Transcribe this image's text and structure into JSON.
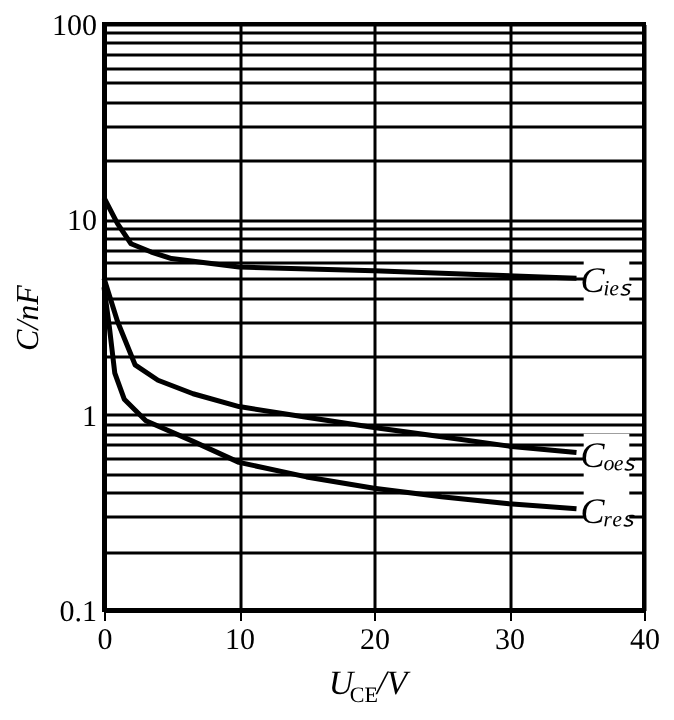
{
  "chart_data": {
    "type": "line",
    "xlabel": "U$_{CE}$/V",
    "ylabel": "C/nF",
    "log": "y",
    "grid": true,
    "legend": false,
    "marker": "none",
    "line_style": "solid",
    "xlim": [
      0,
      40
    ],
    "xticks": [
      0,
      10,
      20,
      30,
      40
    ],
    "ylim": [
      0.1,
      100
    ],
    "yticks": [
      0.1,
      {
        "value": 0.2,
        "label": null
      },
      {
        "value": 0.3,
        "label": null
      },
      {
        "value": 0.4,
        "label": null
      },
      {
        "value": 0.5,
        "label": null
      },
      {
        "value": 0.6,
        "label": null
      },
      {
        "value": 0.7,
        "label": null
      },
      {
        "value": 0.8,
        "label": null
      },
      {
        "value": 0.9,
        "label": null
      },
      1,
      {
        "value": 2,
        "label": null
      },
      {
        "value": 3,
        "label": null
      },
      {
        "value": 4,
        "label": null
      },
      {
        "value": 5,
        "label": null
      },
      {
        "value": 6,
        "label": null
      },
      {
        "value": 7,
        "label": null
      },
      {
        "value": 8,
        "label": null
      },
      {
        "value": 9,
        "label": null
      },
      10,
      {
        "value": 20,
        "label": null
      },
      {
        "value": 30,
        "label": null
      },
      {
        "value": 40,
        "label": null
      },
      {
        "value": 50,
        "label": null
      },
      {
        "value": 60,
        "label": null
      },
      {
        "value": 70,
        "label": null
      },
      {
        "value": 80,
        "label": null
      },
      {
        "value": 90,
        "label": null
      },
      100
    ],
    "series": [
      {
        "name": "Cᵢₑₛ",
        "color": "#000000",
        "x": [
          0,
          1,
          2,
          3.5,
          5,
          10,
          20,
          35
        ],
        "values": [
          12.9,
          9.5,
          7.5,
          6.8,
          6.3,
          5.7,
          5.45,
          5.0
        ]
      },
      {
        "name": "Cₒₑₛ",
        "color": "#000000",
        "x": [
          0,
          1,
          2.3,
          4,
          6.6,
          10,
          15,
          20,
          25,
          30,
          35
        ],
        "values": [
          5.0,
          3.0,
          1.8,
          1.5,
          1.28,
          1.1,
          0.97,
          0.86,
          0.77,
          0.69,
          0.64
        ]
      },
      {
        "name": "Cᵣₑₛ",
        "color": "#000000",
        "x": [
          0,
          0.4,
          0.8,
          1.5,
          3.1,
          6.6,
          10,
          15,
          20,
          25,
          30,
          35
        ],
        "values": [
          4.5,
          2.8,
          1.63,
          1.2,
          0.93,
          0.73,
          0.57,
          0.48,
          0.42,
          0.38,
          0.35,
          0.33
        ]
      }
    ]
  }
}
